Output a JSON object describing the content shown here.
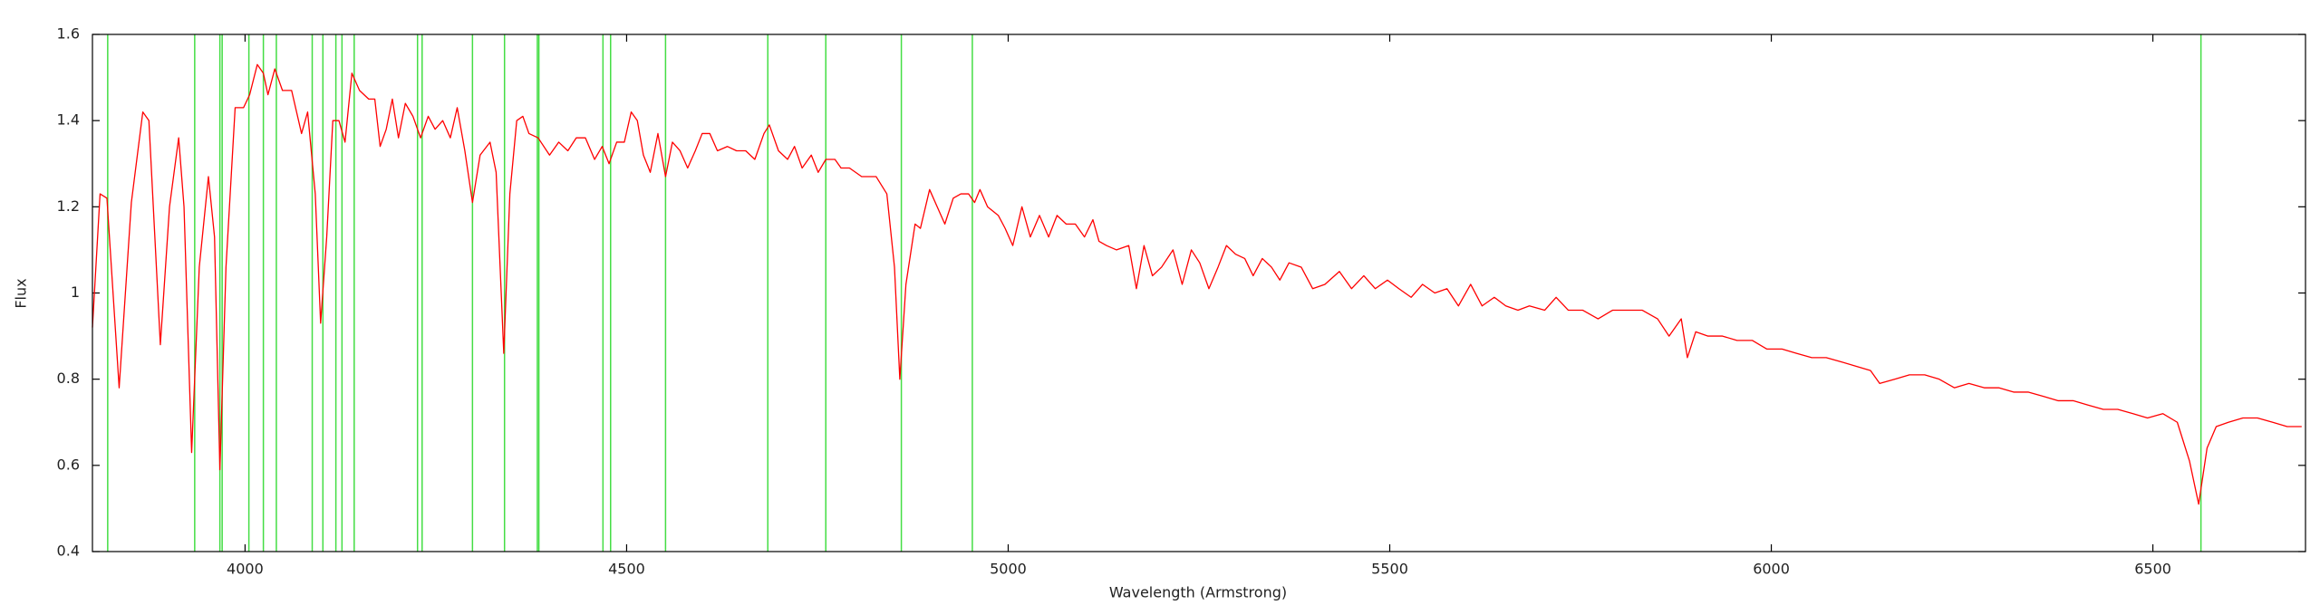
{
  "chart_data": {
    "type": "line",
    "xlabel": "Wavelength (Armstrong)",
    "ylabel": "Flux",
    "xlim": [
      3800,
      6700
    ],
    "ylim": [
      0.4,
      1.6
    ],
    "xticks": [
      4000,
      4500,
      5000,
      5500,
      6000,
      6500
    ],
    "yticks": [
      0.4,
      0.6,
      0.8,
      1,
      1.2,
      1.4,
      1.6
    ],
    "vlines": {
      "color": "#44dd44",
      "x": [
        3820,
        3934,
        3967,
        3970,
        4005,
        4024,
        4041,
        4088,
        4102,
        4119,
        4127,
        4143,
        4226,
        4232,
        4298,
        4340,
        4383,
        4385,
        4469,
        4479,
        4551,
        4685,
        4761,
        4860,
        4953,
        6563
      ]
    },
    "x": [
      3800,
      3810,
      3819,
      3835,
      3851,
      3866,
      3874,
      3889,
      3901,
      3913,
      3920,
      3930,
      3940,
      3952,
      3960,
      3967,
      3975,
      3987,
      3998,
      4006,
      4016,
      4024,
      4030,
      4039,
      4049,
      4061,
      4074,
      4082,
      4092,
      4099,
      4107,
      4115,
      4123,
      4131,
      4140,
      4150,
      4162,
      4170,
      4177,
      4185,
      4193,
      4201,
      4210,
      4220,
      4230,
      4240,
      4249,
      4259,
      4269,
      4278,
      4288,
      4298,
      4308,
      4321,
      4329,
      4339,
      4347,
      4356,
      4364,
      4372,
      4384,
      4399,
      4411,
      4423,
      4434,
      4446,
      4458,
      4468,
      4477,
      4487,
      4497,
      4506,
      4514,
      4522,
      4531,
      4541,
      4551,
      4560,
      4570,
      4580,
      4590,
      4599,
      4609,
      4619,
      4632,
      4644,
      4656,
      4668,
      4680,
      4687,
      4699,
      4711,
      4720,
      4730,
      4742,
      4751,
      4761,
      4773,
      4781,
      4792,
      4808,
      4827,
      4841,
      4851,
      4858,
      4866,
      4878,
      4885,
      4897,
      4907,
      4917,
      4928,
      4938,
      4948,
      4956,
      4963,
      4973,
      4987,
      4996,
      5006,
      5018,
      5029,
      5041,
      5053,
      5064,
      5076,
      5088,
      5100,
      5111,
      5119,
      5129,
      5142,
      5158,
      5168,
      5178,
      5189,
      5201,
      5216,
      5228,
      5240,
      5251,
      5263,
      5275,
      5286,
      5298,
      5310,
      5321,
      5333,
      5345,
      5356,
      5368,
      5384,
      5399,
      5415,
      5434,
      5450,
      5466,
      5481,
      5497,
      5512,
      5528,
      5543,
      5559,
      5575,
      5590,
      5606,
      5621,
      5637,
      5652,
      5668,
      5683,
      5703,
      5718,
      5734,
      5753,
      5773,
      5792,
      5812,
      5831,
      5851,
      5866,
      5882,
      5890,
      5901,
      5917,
      5936,
      5955,
      5975,
      5994,
      6014,
      6033,
      6053,
      6072,
      6092,
      6111,
      6130,
      6142,
      6162,
      6181,
      6201,
      6220,
      6240,
      6259,
      6279,
      6298,
      6318,
      6337,
      6357,
      6376,
      6396,
      6415,
      6435,
      6454,
      6474,
      6493,
      6513,
      6532,
      6548,
      6560,
      6571,
      6583,
      6599,
      6618,
      6637,
      6657,
      6676,
      6695
    ],
    "series": [
      {
        "color": "#ff0000",
        "values": [
          0.92,
          1.23,
          1.22,
          0.78,
          1.21,
          1.42,
          1.4,
          0.88,
          1.2,
          1.36,
          1.2,
          0.63,
          1.06,
          1.27,
          1.13,
          0.59,
          1.06,
          1.43,
          1.43,
          1.46,
          1.53,
          1.51,
          1.46,
          1.52,
          1.47,
          1.47,
          1.37,
          1.42,
          1.23,
          0.93,
          1.13,
          1.4,
          1.4,
          1.35,
          1.51,
          1.47,
          1.45,
          1.45,
          1.34,
          1.38,
          1.45,
          1.36,
          1.44,
          1.41,
          1.36,
          1.41,
          1.38,
          1.4,
          1.36,
          1.43,
          1.33,
          1.21,
          1.32,
          1.35,
          1.28,
          0.86,
          1.23,
          1.4,
          1.41,
          1.37,
          1.36,
          1.32,
          1.35,
          1.33,
          1.36,
          1.36,
          1.31,
          1.34,
          1.3,
          1.35,
          1.35,
          1.42,
          1.4,
          1.32,
          1.28,
          1.37,
          1.27,
          1.35,
          1.33,
          1.29,
          1.33,
          1.37,
          1.37,
          1.33,
          1.34,
          1.33,
          1.33,
          1.31,
          1.37,
          1.39,
          1.33,
          1.31,
          1.34,
          1.29,
          1.32,
          1.28,
          1.31,
          1.31,
          1.29,
          1.29,
          1.27,
          1.27,
          1.23,
          1.06,
          0.8,
          1.02,
          1.16,
          1.15,
          1.24,
          1.2,
          1.16,
          1.22,
          1.23,
          1.23,
          1.21,
          1.24,
          1.2,
          1.18,
          1.15,
          1.11,
          1.2,
          1.13,
          1.18,
          1.13,
          1.18,
          1.16,
          1.16,
          1.13,
          1.17,
          1.12,
          1.11,
          1.1,
          1.11,
          1.01,
          1.11,
          1.04,
          1.06,
          1.1,
          1.02,
          1.1,
          1.07,
          1.01,
          1.06,
          1.11,
          1.09,
          1.08,
          1.04,
          1.08,
          1.06,
          1.03,
          1.07,
          1.06,
          1.01,
          1.02,
          1.05,
          1.01,
          1.04,
          1.01,
          1.03,
          1.01,
          0.99,
          1.02,
          1.0,
          1.01,
          0.97,
          1.02,
          0.97,
          0.99,
          0.97,
          0.96,
          0.97,
          0.96,
          0.99,
          0.96,
          0.96,
          0.94,
          0.96,
          0.96,
          0.96,
          0.94,
          0.9,
          0.94,
          0.85,
          0.91,
          0.9,
          0.9,
          0.89,
          0.89,
          0.87,
          0.87,
          0.86,
          0.85,
          0.85,
          0.84,
          0.83,
          0.82,
          0.79,
          0.8,
          0.81,
          0.81,
          0.8,
          0.78,
          0.79,
          0.78,
          0.78,
          0.77,
          0.77,
          0.76,
          0.75,
          0.75,
          0.74,
          0.73,
          0.73,
          0.72,
          0.71,
          0.72,
          0.7,
          0.61,
          0.51,
          0.64,
          0.69,
          0.7,
          0.71,
          0.71,
          0.7,
          0.69,
          0.69
        ]
      }
    ]
  }
}
